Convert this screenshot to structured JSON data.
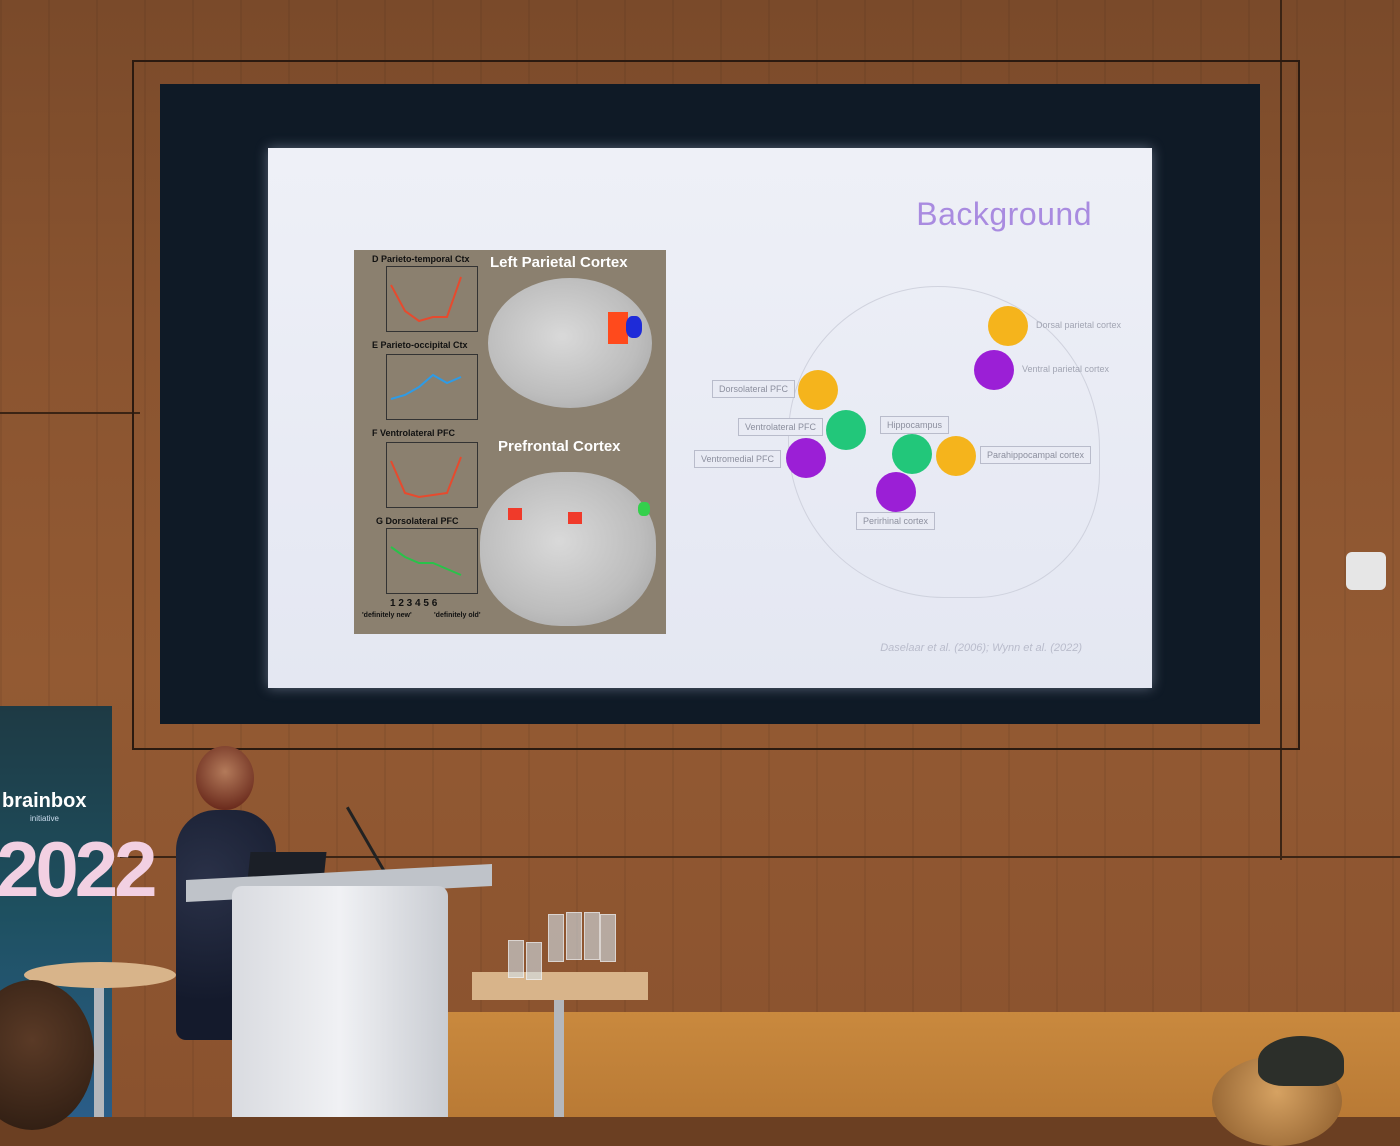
{
  "slide": {
    "title": "Background",
    "citation": "Daselaar et al. (2006); Wynn et al. (2022)"
  },
  "figure": {
    "title_top": "Left Parietal Cortex",
    "title_bottom": "Prefrontal Cortex",
    "panels": [
      {
        "label": "D  Parieto-temporal Ctx"
      },
      {
        "label": "E  Parieto-occipital Ctx"
      },
      {
        "label": "F  Ventrolateral PFC"
      },
      {
        "label": "G  Dorsolateral PFC"
      }
    ],
    "x_ticks": "1  2  3  4  5  6",
    "x_left": "'definitely new'",
    "x_right": "'definitely old'"
  },
  "diagram": {
    "labels": {
      "dorsal_parietal": "Dorsal parietal cortex",
      "ventral_parietal": "Ventral parietal cortex",
      "dorsolateral": "Dorsolateral PFC",
      "ventrolateral": "Ventrolateral PFC",
      "ventromedial": "Ventromedial PFC",
      "hippocampus": "Hippocampus",
      "parahippocampal": "Parahippocampal cortex",
      "perirhinal": "Perirhinal cortex"
    },
    "colors": {
      "yellow": "#f5b41c",
      "purple": "#9b1fd6",
      "green": "#22c77a"
    }
  },
  "banner": {
    "brand": "brainbox",
    "sub": "initiative",
    "year": "2022"
  }
}
